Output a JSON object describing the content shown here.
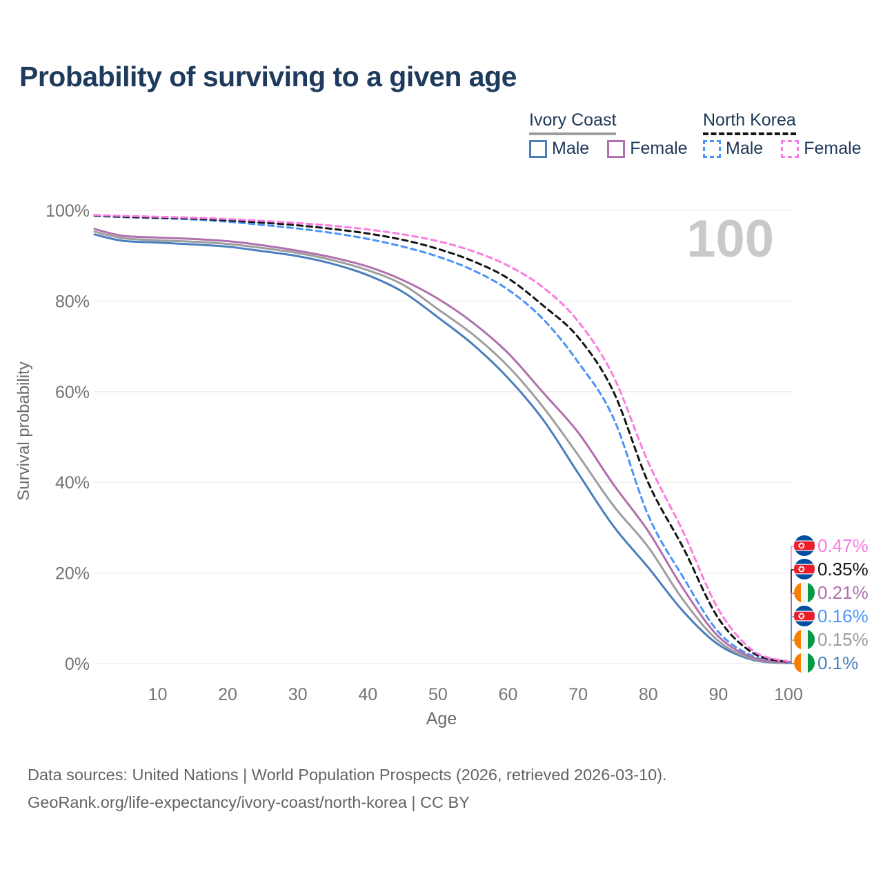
{
  "title": "Probability of surviving to a given age",
  "watermark": "100",
  "legend": {
    "groups": [
      {
        "name": "Ivory Coast",
        "underline": {
          "style": "solid",
          "color": "#9e9e9e"
        },
        "items": [
          {
            "label": "Male",
            "color": "#4a7ebc",
            "dash": false
          },
          {
            "label": "Female",
            "color": "#b06fad",
            "dash": false
          }
        ]
      },
      {
        "name": "North Korea",
        "underline": {
          "style": "dashed",
          "color": "#141414"
        },
        "items": [
          {
            "label": "Male",
            "color": "#4a94f8",
            "dash": true
          },
          {
            "label": "Female",
            "color": "#fb7de2",
            "dash": true
          }
        ]
      }
    ]
  },
  "chart_data": {
    "type": "line",
    "title": "Probability of surviving to a given age",
    "xlabel": "Age",
    "ylabel": "Survival probability",
    "xlim": [
      1,
      100
    ],
    "ylim": [
      0,
      100
    ],
    "grid": "horizontal-only",
    "legend_position": "top-right",
    "x_ticks": [
      10,
      20,
      30,
      40,
      50,
      60,
      70,
      80,
      90,
      100
    ],
    "y_ticks": [
      0,
      20,
      40,
      60,
      80,
      100
    ],
    "y_tick_suffix": "%",
    "x": [
      1,
      5,
      10,
      15,
      20,
      25,
      30,
      35,
      40,
      45,
      50,
      55,
      60,
      65,
      70,
      75,
      80,
      85,
      90,
      95,
      100
    ],
    "series": [
      {
        "name": "North Korea Female",
        "color": "#fb7de2",
        "line_style": "dashed",
        "flag": "north-korea",
        "end_label": "0.47%",
        "values": [
          99.0,
          98.8,
          98.6,
          98.4,
          98.1,
          97.7,
          97.2,
          96.6,
          95.8,
          94.7,
          93.2,
          91.0,
          87.8,
          83.0,
          75.5,
          63.5,
          44.4,
          29.0,
          12.0,
          2.8,
          0.47
        ]
      },
      {
        "name": "North Korea",
        "color": "#141414",
        "line_style": "dashed",
        "flag": "north-korea",
        "end_label": "0.35%",
        "values": [
          98.9,
          98.6,
          98.4,
          98.2,
          97.8,
          97.3,
          96.7,
          95.9,
          94.9,
          93.5,
          91.5,
          88.8,
          85.0,
          79.0,
          72.0,
          60.1,
          39.9,
          25.5,
          10.0,
          2.3,
          0.35
        ]
      },
      {
        "name": "Ivory Coast Female",
        "color": "#b06fad",
        "line_style": "solid",
        "flag": "ivory-coast",
        "end_label": "0.21%",
        "values": [
          95.9,
          94.4,
          94.0,
          93.7,
          93.2,
          92.3,
          91.1,
          89.6,
          87.6,
          84.6,
          80.5,
          75.2,
          68.5,
          59.8,
          51.0,
          39.6,
          29.2,
          16.5,
          6.0,
          1.3,
          0.21
        ]
      },
      {
        "name": "North Korea Male",
        "color": "#4a94f8",
        "line_style": "dashed",
        "flag": "north-korea",
        "end_label": "0.16%",
        "values": [
          98.8,
          98.5,
          98.3,
          98.0,
          97.5,
          96.8,
          96.0,
          95.0,
          93.7,
          92.0,
          89.8,
          86.8,
          82.5,
          76.0,
          66.5,
          54.3,
          32.7,
          19.0,
          7.0,
          1.6,
          0.16
        ]
      },
      {
        "name": "Ivory Coast",
        "color": "#9e9e9e",
        "line_style": "solid",
        "flag": "ivory-coast",
        "end_label": "0.15%",
        "values": [
          95.3,
          93.9,
          93.4,
          93.1,
          92.6,
          91.7,
          90.6,
          89.0,
          86.8,
          83.6,
          78.2,
          72.6,
          65.6,
          56.6,
          46.0,
          34.9,
          25.7,
          14.0,
          5.0,
          1.0,
          0.15
        ]
      },
      {
        "name": "Ivory Coast Male",
        "color": "#4a7ebc",
        "line_style": "solid",
        "flag": "ivory-coast",
        "end_label": "0.1%",
        "values": [
          94.7,
          93.3,
          92.9,
          92.5,
          92.0,
          91.0,
          89.9,
          88.2,
          85.7,
          82.0,
          76.4,
          70.4,
          63.0,
          53.8,
          42.0,
          30.4,
          21.2,
          11.5,
          4.2,
          0.8,
          0.1
        ]
      }
    ]
  },
  "footer": {
    "line1": "Data sources: United Nations | World Population Prospects (2026, retrieved 2026-03-10).",
    "line2": "GeoRank.org/life-expectancy/ivory-coast/north-korea | CC BY"
  }
}
